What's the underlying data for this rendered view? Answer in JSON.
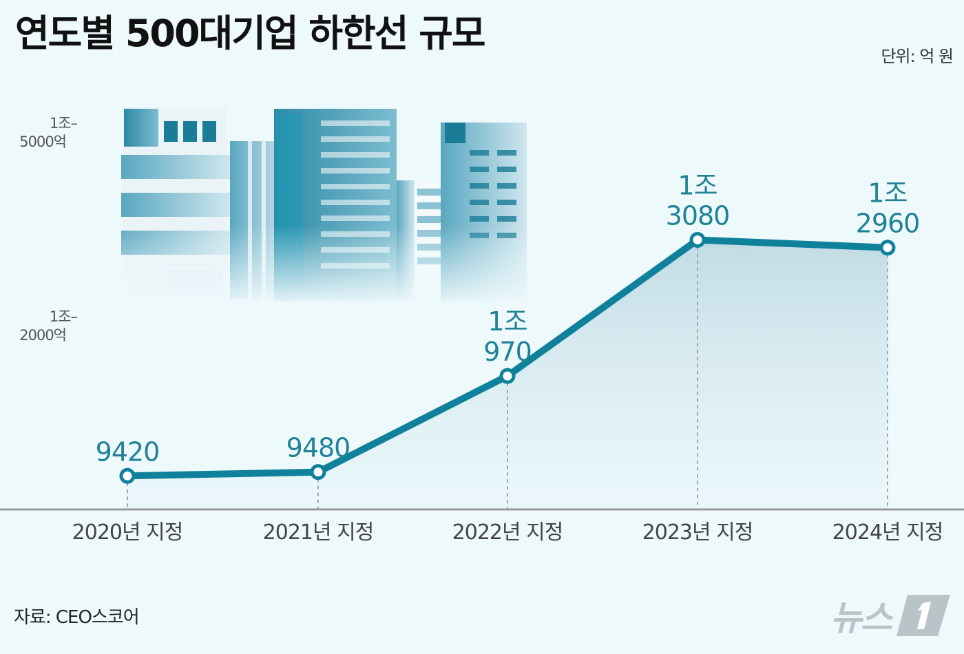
{
  "header": {
    "title": "연도별 500대기업 하한선 규모",
    "unit": "단위: 억 원"
  },
  "footer": {
    "source": "자료: CEO스코어",
    "logo_text": "뉴스"
  },
  "colors": {
    "line": "#10819a",
    "label": "#1f8296",
    "background": "#eef9fc",
    "axis": "#9a9a9a"
  },
  "chart_data": {
    "type": "line",
    "title": "연도별 500대기업 하한선 규모",
    "unit": "단위: 억 원",
    "x": [
      "2020년 지정",
      "2021년 지정",
      "2022년 지정",
      "2023년 지정",
      "2024년 지정"
    ],
    "series": [
      {
        "values": [
          9420,
          9480,
          10970,
          13080,
          12960
        ]
      }
    ],
    "data_labels": [
      [
        "9420"
      ],
      [
        "9480"
      ],
      [
        "1조",
        "970"
      ],
      [
        "1조",
        "3080"
      ],
      [
        "1조",
        "2960"
      ]
    ],
    "yticks": [
      {
        "value": 15000,
        "lines": [
          "1조–",
          "5000억"
        ]
      },
      {
        "value": 12000,
        "lines": [
          "1조–",
          "2000억"
        ]
      }
    ],
    "grid": false,
    "legend": "none"
  }
}
